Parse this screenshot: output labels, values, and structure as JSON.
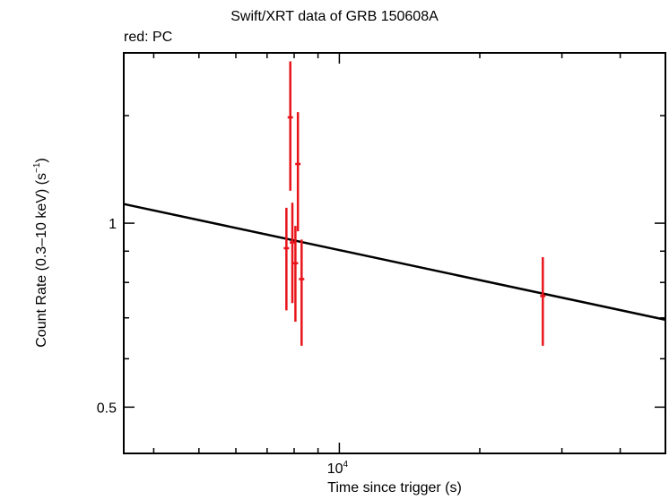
{
  "chart_data": {
    "type": "scatter",
    "title": "Swift/XRT data of GRB 150608A",
    "subtitle": "red: PC",
    "xlabel": "Time since trigger (s)",
    "ylabel": {
      "main": "Count Rate (0.3–10 keV) (s",
      "sup": "−1",
      "close": ")"
    },
    "x_scale": "log",
    "y_scale": "log",
    "xlim": [
      3450,
      50000
    ],
    "ylim": [
      0.42,
      1.9
    ],
    "x_ticks": [
      {
        "value": 10000,
        "base": "10",
        "exp": "4"
      }
    ],
    "y_ticks": [
      {
        "value": 1,
        "label": "1"
      },
      {
        "value": 0.5,
        "label": "0.5"
      }
    ],
    "grid": false,
    "colors": {
      "points": "#e8141a",
      "fit": "#000000"
    },
    "series": [
      {
        "name": "PC",
        "points": [
          {
            "x": 7700,
            "y": 0.91,
            "ylo": 0.72,
            "yhi": 1.06
          },
          {
            "x": 7850,
            "y": 1.49,
            "ylo": 1.13,
            "yhi": 1.84
          },
          {
            "x": 7930,
            "y": 0.93,
            "ylo": 0.74,
            "yhi": 1.08
          },
          {
            "x": 8050,
            "y": 0.86,
            "ylo": 0.69,
            "yhi": 0.99
          },
          {
            "x": 8150,
            "y": 1.25,
            "ylo": 0.97,
            "yhi": 1.52
          },
          {
            "x": 8300,
            "y": 0.81,
            "ylo": 0.63,
            "yhi": 0.94
          },
          {
            "x": 27300,
            "y": 0.76,
            "ylo": 0.63,
            "yhi": 0.88
          }
        ]
      }
    ],
    "fit_line": {
      "x": [
        3450,
        50000
      ],
      "y": [
        1.075,
        0.695
      ]
    }
  }
}
